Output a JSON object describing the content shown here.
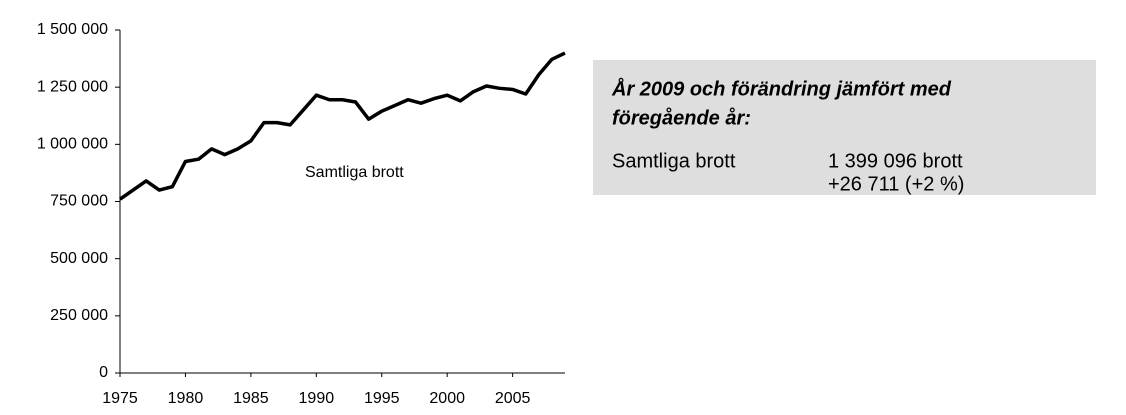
{
  "chart_data": {
    "type": "line",
    "x": [
      1975,
      1976,
      1977,
      1978,
      1979,
      1980,
      1981,
      1982,
      1983,
      1984,
      1985,
      1986,
      1987,
      1988,
      1989,
      1990,
      1991,
      1992,
      1993,
      1994,
      1995,
      1996,
      1997,
      1998,
      1999,
      2000,
      2001,
      2002,
      2003,
      2004,
      2005,
      2006,
      2007,
      2008,
      2009
    ],
    "series": [
      {
        "name": "Samtliga brott",
        "color": "#000000",
        "values": [
          760000,
          800000,
          840000,
          800000,
          815000,
          925000,
          935000,
          980000,
          955000,
          980000,
          1015000,
          1095000,
          1095000,
          1085000,
          1150000,
          1215000,
          1195000,
          1195000,
          1185000,
          1110000,
          1145000,
          1170000,
          1195000,
          1180000,
          1200000,
          1215000,
          1190000,
          1230000,
          1255000,
          1245000,
          1240000,
          1220000,
          1305000,
          1372000,
          1399096
        ]
      }
    ],
    "xlim": [
      1975,
      2009
    ],
    "xticks": [
      1975,
      1980,
      1985,
      1990,
      1995,
      2000,
      2005
    ],
    "ylim": [
      0,
      1500000
    ],
    "yticks": [
      0,
      {
        "value": 250000,
        "label": "250 000"
      },
      {
        "value": 500000,
        "label": "500 000"
      },
      {
        "value": 750000,
        "label": "750 000"
      },
      {
        "value": 1000000,
        "label": "1 000 000"
      },
      {
        "value": 1250000,
        "label": "1 250 000"
      },
      {
        "value": 1500000,
        "label": "1 500 000"
      }
    ],
    "grid": false
  },
  "info_box": {
    "title_lines": [
      "År 2009 och förändring jämfört med",
      "föregående år:"
    ],
    "row_label": "Samtliga brott",
    "row_values": [
      "1 399 096 brott",
      "+26 711 (+2 %)"
    ]
  }
}
